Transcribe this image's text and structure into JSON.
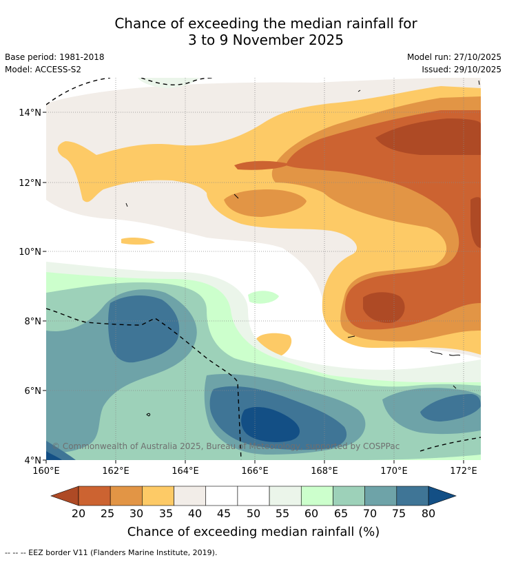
{
  "title": {
    "line1": "Chance of exceeding the median rainfall for",
    "line2": "3 to 9 November 2025"
  },
  "meta": {
    "base_period": "Base period: 1981-2018",
    "model": "Model: ACCESS-S2",
    "model_run": "Model run: 27/10/2025",
    "issued": "Issued: 29/10/2025"
  },
  "map": {
    "lat_labels": [
      "14°N",
      "12°N",
      "10°N",
      "8°N",
      "6°N",
      "4°N"
    ],
    "lon_labels": [
      "160°E",
      "162°E",
      "164°E",
      "166°E",
      "168°E",
      "170°E",
      "172°E"
    ],
    "copyright": "© Commonwealth of Australia 2025, Bureau of Meteorology, supported by COSPPac"
  },
  "colorbar": {
    "ticks": [
      "20",
      "25",
      "30",
      "35",
      "40",
      "45",
      "50",
      "55",
      "60",
      "65",
      "70",
      "75",
      "80"
    ],
    "colors": [
      "#ae4a25",
      "#cc6331",
      "#e29545",
      "#fdca66",
      "#f2ede8",
      "#ffffff",
      "#ffffff",
      "#ebf5ea",
      "#ccffcc",
      "#9dd1b9",
      "#6ea3a8",
      "#3f7596",
      "#134f85"
    ],
    "title": "Chance of exceeding median rainfall (%)"
  },
  "footer": "--  --  -- EEZ border V11 (Flanders Marine Institute, 2019)."
}
